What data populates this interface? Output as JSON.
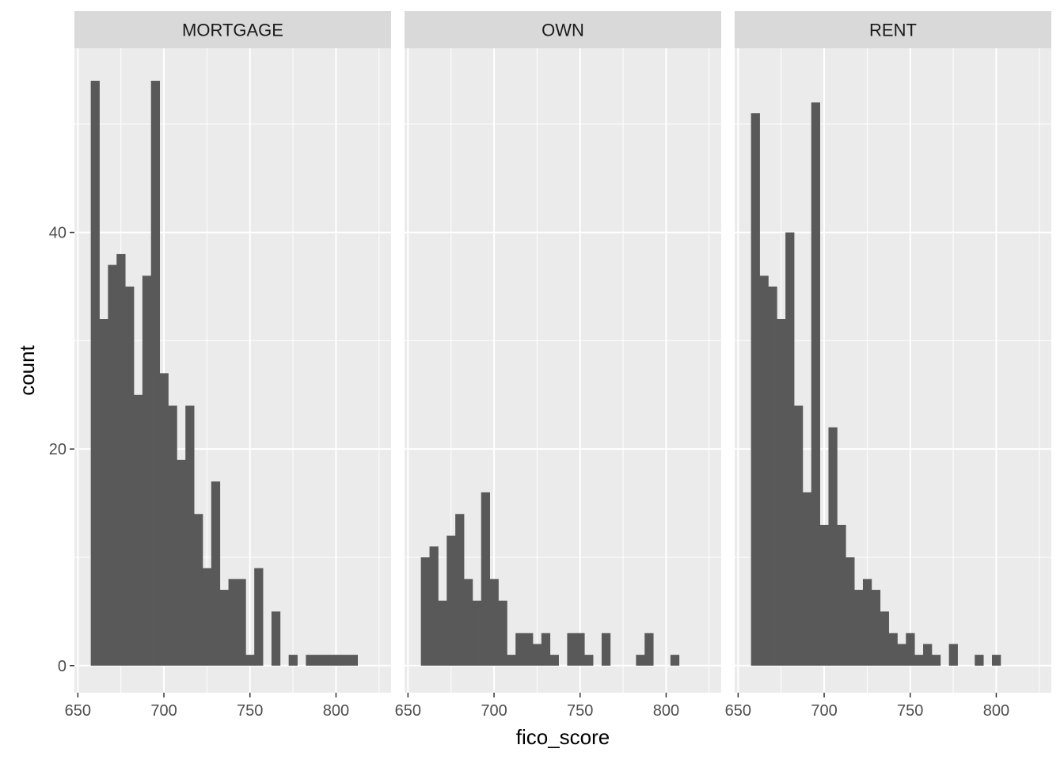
{
  "chart_data": {
    "type": "bar",
    "xlabel": "fico_score",
    "ylabel": "count",
    "xlim": [
      648,
      832
    ],
    "ylim": [
      -2.5,
      57
    ],
    "x_ticks": [
      650,
      700,
      750,
      800
    ],
    "y_ticks": [
      0,
      20,
      40
    ],
    "bin_width": 5,
    "bin_start": 657.5,
    "grid": true,
    "panels": [
      {
        "name": "MORTGAGE",
        "counts": [
          54,
          32,
          37,
          38,
          35,
          25,
          36,
          54,
          27,
          24,
          19,
          24,
          14,
          9,
          17,
          7,
          8,
          8,
          1,
          9,
          0,
          5,
          0,
          1,
          0,
          1,
          1,
          1,
          1,
          1,
          1
        ]
      },
      {
        "name": "OWN",
        "counts": [
          10,
          11,
          6,
          12,
          14,
          8,
          6,
          16,
          8,
          6,
          1,
          3,
          3,
          2,
          3,
          1,
          0,
          3,
          3,
          1,
          0,
          3,
          0,
          0,
          0,
          1,
          3,
          0,
          0,
          1
        ]
      },
      {
        "name": "RENT",
        "counts": [
          51,
          36,
          35,
          32,
          40,
          24,
          16,
          52,
          13,
          22,
          13,
          10,
          7,
          8,
          7,
          5,
          3,
          2,
          3,
          1,
          2,
          1,
          0,
          2,
          0,
          0,
          1,
          0,
          1
        ]
      }
    ]
  }
}
